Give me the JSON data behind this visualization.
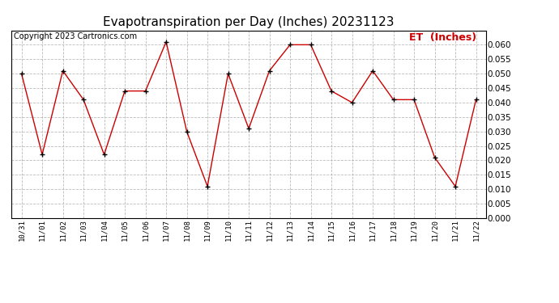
{
  "title": "Evapotranspiration per Day (Inches) 20231123",
  "copyright": "Copyright 2023 Cartronics.com",
  "legend_label": "ET  (Inches)",
  "dates": [
    "10/31",
    "11/01",
    "11/02",
    "11/03",
    "11/04",
    "11/05",
    "11/06",
    "11/07",
    "11/08",
    "11/09",
    "11/10",
    "11/11",
    "11/12",
    "11/13",
    "11/14",
    "11/15",
    "11/16",
    "11/17",
    "11/18",
    "11/19",
    "11/20",
    "11/21",
    "11/22"
  ],
  "values": [
    0.05,
    0.022,
    0.051,
    0.041,
    0.022,
    0.044,
    0.044,
    0.061,
    0.03,
    0.011,
    0.05,
    0.031,
    0.051,
    0.06,
    0.06,
    0.044,
    0.04,
    0.051,
    0.041,
    0.041,
    0.021,
    0.011,
    0.041
  ],
  "ylim": [
    0.0,
    0.065
  ],
  "yticks": [
    0.0,
    0.005,
    0.01,
    0.015,
    0.02,
    0.025,
    0.03,
    0.035,
    0.04,
    0.045,
    0.05,
    0.055,
    0.06
  ],
  "line_color": "#cc0000",
  "marker_color": "#000000",
  "background_color": "#ffffff",
  "grid_color": "#aaaaaa",
  "title_fontsize": 11,
  "copyright_fontsize": 7,
  "legend_color": "#cc0000",
  "legend_fontsize": 9
}
